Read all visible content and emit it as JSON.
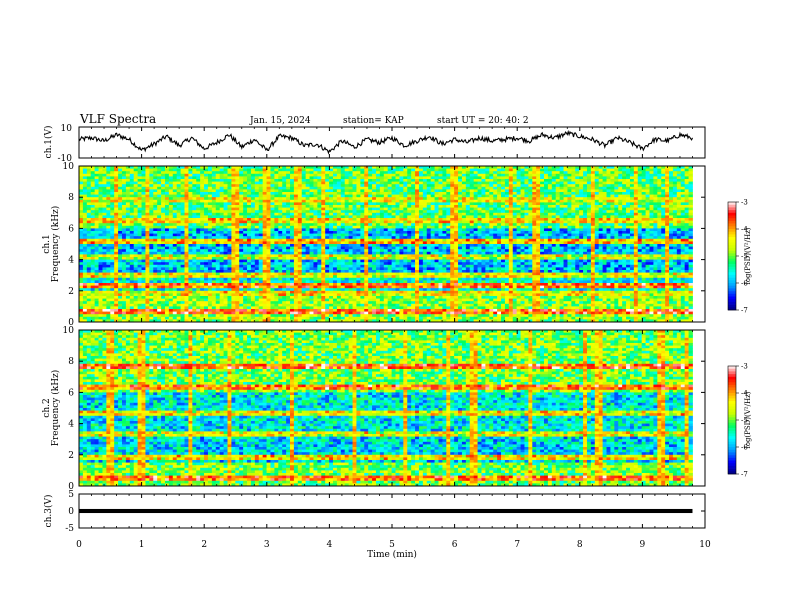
{
  "header": {
    "title": "VLF Spectra",
    "date": "Jan. 15, 2024",
    "station": "station= KAP",
    "start": "start  UT  =   20: 40: 2"
  },
  "colors": {
    "trace": "#000000",
    "colormap": [
      "#000080",
      "#0000ff",
      "#00a0ff",
      "#00ffff",
      "#00ff60",
      "#c8ff00",
      "#ffff00",
      "#ff8000",
      "#ff0000",
      "#ffffff"
    ]
  },
  "chart_data": [
    {
      "type": "line",
      "ylabel": "ch.1(V)",
      "ylim": [
        -10,
        10
      ],
      "yticks": [
        "10",
        "-10"
      ],
      "xlim": [
        0,
        10
      ],
      "x": [
        0,
        0.2,
        0.4,
        0.6,
        0.8,
        1.0,
        1.2,
        1.4,
        1.6,
        1.8,
        2.0,
        2.2,
        2.4,
        2.6,
        2.8,
        3.0,
        3.2,
        3.4,
        3.6,
        3.8,
        4.0,
        4.2,
        4.4,
        4.6,
        4.8,
        5.0,
        5.2,
        5.4,
        5.6,
        5.8,
        6.0,
        6.2,
        6.4,
        6.6,
        6.8,
        7.0,
        7.2,
        7.4,
        7.6,
        7.8,
        8.0,
        8.2,
        8.4,
        8.6,
        8.8,
        9.0,
        9.2,
        9.4,
        9.6,
        9.8
      ],
      "y": [
        2,
        3,
        1,
        5,
        2,
        -5,
        -1,
        4,
        -2,
        3,
        -4,
        0,
        5,
        -3,
        2,
        -5,
        4,
        3,
        -2,
        -1,
        -6,
        1,
        -3,
        2,
        0,
        3,
        -2,
        1,
        4,
        -1,
        2,
        0,
        3,
        1,
        2,
        3,
        1,
        5,
        3,
        6,
        4,
        2,
        -2,
        3,
        0,
        -4,
        2,
        1,
        5,
        3
      ]
    },
    {
      "type": "heatmap",
      "ylabel": "ch.1\nFrequency (kHz)",
      "ylim": [
        0,
        10
      ],
      "yticks": [
        "0",
        "2",
        "4",
        "6",
        "8",
        "10"
      ],
      "xlim": [
        0,
        10
      ],
      "colorbar": {
        "label": "log(PSD)(V²/Hz)",
        "range": [
          -7,
          -3
        ],
        "ticks": [
          "-3",
          "-4",
          "-5",
          "-6",
          "-7"
        ]
      },
      "bands_khz": [
        {
          "freq": 0.6,
          "psd": -3.4
        },
        {
          "freq": 1.9,
          "psd": -4.2
        },
        {
          "freq": 2.3,
          "psd": -3.5
        },
        {
          "freq": 3.0,
          "psd": -4.3
        },
        {
          "freq": 4.1,
          "psd": -4.4
        },
        {
          "freq": 5.2,
          "psd": -3.9
        },
        {
          "freq": 6.5,
          "psd": -4.2
        },
        {
          "freq": 7.9,
          "psd": -4.4
        }
      ],
      "background_psd_low_high_khz": [
        {
          "from": 0,
          "to": 1.6,
          "psd": -4.9
        },
        {
          "from": 1.6,
          "to": 3.2,
          "psd": -5.6
        },
        {
          "from": 3.2,
          "to": 6.0,
          "psd": -5.9
        },
        {
          "from": 6.0,
          "to": 10.0,
          "psd": -5.1
        }
      ],
      "impulses_min": [
        0.6,
        1.1,
        1.7,
        2.5,
        3.0,
        3.5,
        3.9,
        4.6,
        5.4,
        6.0,
        6.9,
        7.3,
        8.2,
        8.9,
        9.4
      ]
    },
    {
      "type": "heatmap",
      "ylabel": "ch.2\nFrequency (kHz)",
      "ylim": [
        0,
        10
      ],
      "yticks": [
        "0",
        "2",
        "4",
        "6",
        "8",
        "10"
      ],
      "xlim": [
        0,
        10
      ],
      "colorbar": {
        "label": "log(PSD)(V²/Hz)",
        "range": [
          -7,
          -3
        ],
        "ticks": [
          "-3",
          "-4",
          "-5",
          "-6",
          "-7"
        ]
      },
      "bands_khz": [
        {
          "freq": 0.5,
          "psd": -3.6
        },
        {
          "freq": 1.8,
          "psd": -4.1
        },
        {
          "freq": 3.4,
          "psd": -4.3
        },
        {
          "freq": 4.6,
          "psd": -4.2
        },
        {
          "freq": 6.4,
          "psd": -3.6
        },
        {
          "freq": 7.6,
          "psd": -3.4
        }
      ],
      "background_psd_low_high_khz": [
        {
          "from": 0,
          "to": 1.5,
          "psd": -5.0
        },
        {
          "from": 1.5,
          "to": 3.5,
          "psd": -5.8
        },
        {
          "from": 3.5,
          "to": 6.0,
          "psd": -5.7
        },
        {
          "from": 6.0,
          "to": 10.0,
          "psd": -5.0
        }
      ],
      "impulses_min": [
        0.5,
        1.0,
        1.8,
        2.4,
        3.4,
        4.4,
        5.2,
        5.9,
        6.3,
        7.2,
        8.1,
        8.3,
        9.3,
        9.7
      ]
    },
    {
      "type": "line",
      "ylabel": "ch.3(V)",
      "ylim": [
        -5,
        5
      ],
      "yticks": [
        "5",
        "0",
        "-5"
      ],
      "xlim": [
        0,
        10
      ],
      "xlabel": "Time (min)",
      "xticks": [
        "0",
        "1",
        "2",
        "3",
        "4",
        "5",
        "6",
        "7",
        "8",
        "9",
        "10"
      ],
      "x": [
        0,
        9.8
      ],
      "y": [
        0,
        0
      ],
      "band_halfwidth": 0.6
    }
  ]
}
